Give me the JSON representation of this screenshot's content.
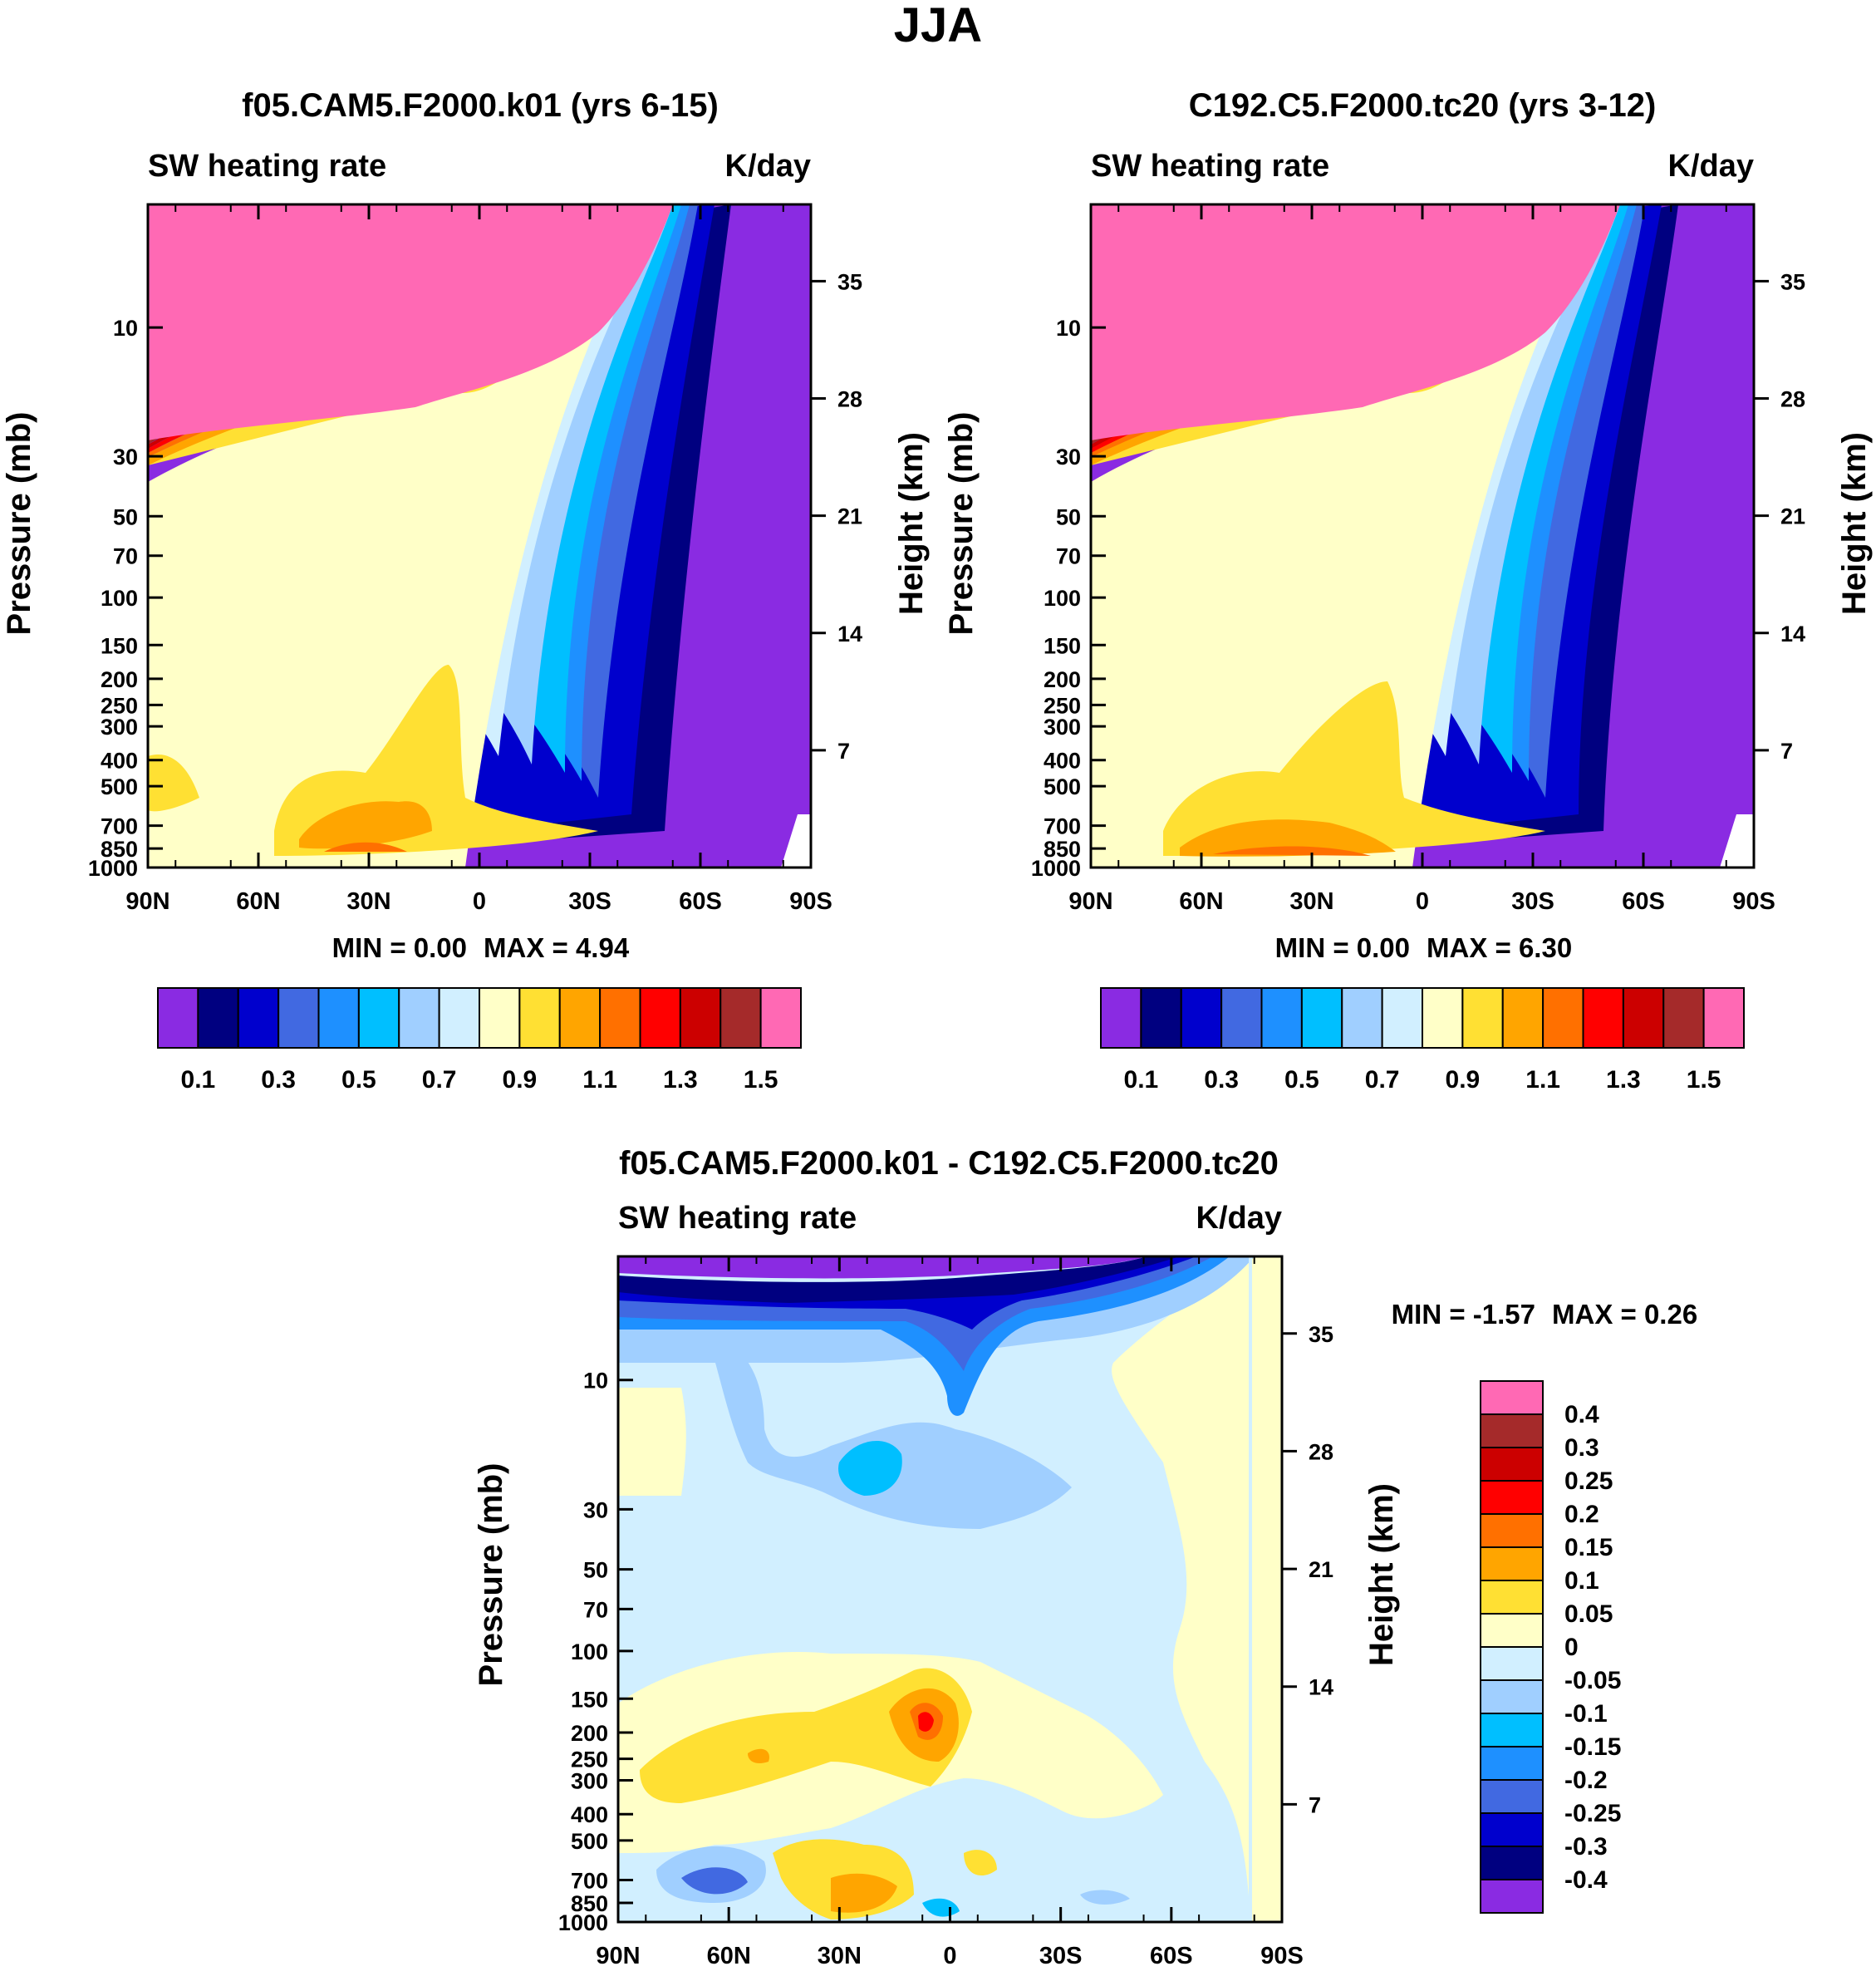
{
  "figure_title": "JJA",
  "palettes": {
    "field": [
      "#8a2be2",
      "#000080",
      "#0000cd",
      "#4169e1",
      "#1e90ff",
      "#00bfff",
      "#a0cfff",
      "#d1efff",
      "#ffffc8",
      "#ffe033",
      "#ffa500",
      "#ff7000",
      "#ff0000",
      "#cc0000",
      "#a52a2a",
      "#ff69b4"
    ],
    "diff": [
      "#8a2be2",
      "#000080",
      "#0000cd",
      "#4169e1",
      "#1e90ff",
      "#00bfff",
      "#a0cfff",
      "#d1efff",
      "#ffffc8",
      "#ffe033",
      "#ffa500",
      "#ff7000",
      "#ff0000",
      "#cc0000",
      "#a52a2a",
      "#ff69b4"
    ]
  },
  "chart_data": [
    {
      "id": "p1",
      "type": "heatmap",
      "title": "f05.CAM5.F2000.k01 (yrs 6-15)",
      "left_label": "SW heating rate",
      "right_label": "K/day",
      "xlabel": "",
      "ylabel": "Pressure (mb)",
      "y2label": "Height (km)",
      "x_ticks": [
        "90N",
        "60N",
        "30N",
        "0",
        "30S",
        "60S",
        "90S"
      ],
      "x_range": [
        90,
        -90
      ],
      "y_ticks": [
        10,
        30,
        50,
        70,
        100,
        150,
        200,
        250,
        300,
        400,
        500,
        700,
        850,
        1000
      ],
      "y_range_mb": [
        1000,
        3.5
      ],
      "height_ticks_km": [
        7,
        14,
        21,
        28,
        35
      ],
      "min_text": "MIN =   0.00",
      "max_text": "MAX =   4.94",
      "colorbar_labels": [
        "0.1",
        "0.3",
        "0.5",
        "0.7",
        "0.9",
        "1.1",
        "1.3",
        "1.5"
      ],
      "contour_levels": [
        0.1,
        0.2,
        0.3,
        0.4,
        0.5,
        0.6,
        0.7,
        0.8,
        0.9,
        1.0,
        1.1,
        1.2,
        1.3,
        1.4,
        1.5
      ]
    },
    {
      "id": "p2",
      "type": "heatmap",
      "title": "C192.C5.F2000.tc20 (yrs 3-12)",
      "left_label": "SW heating rate",
      "right_label": "K/day",
      "xlabel": "",
      "ylabel": "Pressure (mb)",
      "y2label": "Height (km)",
      "x_ticks": [
        "90N",
        "60N",
        "30N",
        "0",
        "30S",
        "60S",
        "90S"
      ],
      "x_range": [
        90,
        -90
      ],
      "y_ticks": [
        10,
        30,
        50,
        70,
        100,
        150,
        200,
        250,
        300,
        400,
        500,
        700,
        850,
        1000
      ],
      "y_range_mb": [
        1000,
        3.5
      ],
      "height_ticks_km": [
        7,
        14,
        21,
        28,
        35
      ],
      "min_text": "MIN =   0.00",
      "max_text": "MAX =   6.30",
      "colorbar_labels": [
        "0.1",
        "0.3",
        "0.5",
        "0.7",
        "0.9",
        "1.1",
        "1.3",
        "1.5"
      ],
      "contour_levels": [
        0.1,
        0.2,
        0.3,
        0.4,
        0.5,
        0.6,
        0.7,
        0.8,
        0.9,
        1.0,
        1.1,
        1.2,
        1.3,
        1.4,
        1.5
      ]
    },
    {
      "id": "p3",
      "type": "heatmap",
      "title": "f05.CAM5.F2000.k01 - C192.C5.F2000.tc20",
      "left_label": "SW heating rate",
      "right_label": "K/day",
      "xlabel": "",
      "ylabel": "Pressure (mb)",
      "y2label": "Height (km)",
      "x_ticks": [
        "90N",
        "60N",
        "30N",
        "0",
        "30S",
        "60S",
        "90S"
      ],
      "x_range": [
        90,
        -90
      ],
      "y_ticks": [
        10,
        30,
        50,
        70,
        100,
        150,
        200,
        250,
        300,
        400,
        500,
        700,
        850,
        1000
      ],
      "y_range_mb": [
        1000,
        3.5
      ],
      "height_ticks_km": [
        7,
        14,
        21,
        28,
        35
      ],
      "min_text": "MIN =  -1.57",
      "max_text": "MAX =   0.26",
      "colorbar_labels": [
        "0.4",
        "0.3",
        "0.25",
        "0.2",
        "0.15",
        "0.1",
        "0.05",
        "0",
        "-0.05",
        "-0.1",
        "-0.15",
        "-0.2",
        "-0.25",
        "-0.3",
        "-0.4"
      ],
      "contour_levels": [
        -0.4,
        -0.3,
        -0.25,
        -0.2,
        -0.15,
        -0.1,
        -0.05,
        0,
        0.05,
        0.1,
        0.15,
        0.2,
        0.25,
        0.3,
        0.4
      ]
    }
  ]
}
